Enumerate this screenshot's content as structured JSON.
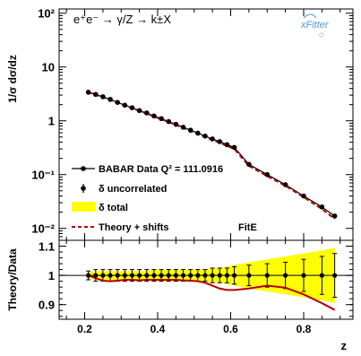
{
  "chart_data": [
    {
      "type": "line",
      "title": "e⁺e⁻ → γ/Z → k±X",
      "ylabel": "1/σ dσ/dz",
      "xlabel": "",
      "yscale": "log",
      "xlim": [
        0.13,
        0.935
      ],
      "ylim": [
        0.006,
        120
      ],
      "yticks": [
        "10²",
        "10",
        "1",
        "10⁻¹",
        "10⁻²"
      ],
      "legend_position": "bottom-left",
      "legend": [
        {
          "label": "BABAR Data Q² = 111.0916",
          "marker": "line-dot"
        },
        {
          "label": "δ uncorrelated",
          "marker": "errorbar"
        },
        {
          "label": "δ total",
          "marker": "yellow-box"
        },
        {
          "label": "Theory + shifts",
          "marker": "dashed-red"
        }
      ],
      "annotation": "FitE",
      "logo": "xFitter",
      "series": [
        {
          "name": "BABAR Data Q² = 111.0916",
          "x": [
            0.21,
            0.23,
            0.25,
            0.27,
            0.29,
            0.31,
            0.33,
            0.35,
            0.37,
            0.39,
            0.41,
            0.43,
            0.45,
            0.47,
            0.49,
            0.51,
            0.53,
            0.55,
            0.57,
            0.59,
            0.61,
            0.65,
            0.7,
            0.75,
            0.8,
            0.85,
            0.885
          ],
          "y": [
            3.4,
            3.1,
            2.8,
            2.5,
            2.2,
            1.95,
            1.75,
            1.55,
            1.4,
            1.23,
            1.1,
            0.97,
            0.86,
            0.76,
            0.67,
            0.59,
            0.52,
            0.46,
            0.41,
            0.36,
            0.32,
            0.155,
            0.1,
            0.065,
            0.04,
            0.025,
            0.017
          ]
        },
        {
          "name": "Theory + shifts",
          "x": [
            0.21,
            0.23,
            0.25,
            0.27,
            0.29,
            0.31,
            0.33,
            0.35,
            0.37,
            0.39,
            0.41,
            0.43,
            0.45,
            0.47,
            0.49,
            0.51,
            0.53,
            0.55,
            0.57,
            0.59,
            0.61,
            0.65,
            0.7,
            0.75,
            0.8,
            0.85,
            0.885
          ],
          "y": [
            3.4,
            3.05,
            2.75,
            2.45,
            2.16,
            1.92,
            1.72,
            1.52,
            1.37,
            1.2,
            1.07,
            0.95,
            0.84,
            0.74,
            0.65,
            0.57,
            0.5,
            0.44,
            0.39,
            0.34,
            0.3,
            0.145,
            0.094,
            0.062,
            0.038,
            0.023,
            0.015
          ]
        }
      ]
    },
    {
      "type": "line",
      "xlabel": "z",
      "ylabel": "Theory/Data",
      "xlim": [
        0.13,
        0.935
      ],
      "ylim": [
        0.85,
        1.12
      ],
      "xticks": [
        "0.2",
        "0.4",
        "0.6",
        "0.8"
      ],
      "yticks": [
        "1.1",
        "1",
        "0.9"
      ],
      "series": [
        {
          "name": "",
          "x": [
            0.21,
            0.23,
            0.25,
            0.27,
            0.29,
            0.31,
            0.33,
            0.35,
            0.37,
            0.39,
            0.41,
            0.43,
            0.45,
            0.47,
            0.49,
            0.51,
            0.53,
            0.55,
            0.57,
            0.59,
            0.61,
            0.65,
            0.7,
            0.75,
            0.8,
            0.85,
            0.885
          ],
          "data_ratio": [
            1,
            1,
            1,
            1,
            1,
            1,
            1,
            1,
            1,
            1,
            1,
            1,
            1,
            1,
            1,
            1,
            1,
            1,
            1,
            1,
            1,
            1,
            1,
            1,
            1,
            1,
            1
          ],
          "uncorrelated_error": [
            0.015,
            0.02,
            0.02,
            0.02,
            0.02,
            0.02,
            0.02,
            0.02,
            0.02,
            0.02,
            0.02,
            0.02,
            0.02,
            0.02,
            0.02,
            0.02,
            0.02,
            0.025,
            0.025,
            0.025,
            0.03,
            0.035,
            0.04,
            0.045,
            0.055,
            0.065,
            0.075
          ],
          "total_error": [
            0.012,
            0.015,
            0.015,
            0.015,
            0.015,
            0.015,
            0.015,
            0.015,
            0.015,
            0.02,
            0.02,
            0.02,
            0.02,
            0.02,
            0.02,
            0.02,
            0.02,
            0.025,
            0.025,
            0.03,
            0.035,
            0.045,
            0.055,
            0.065,
            0.075,
            0.085,
            0.095
          ]
        },
        {
          "name": "Theory + shifts",
          "x": [
            0.21,
            0.23,
            0.25,
            0.27,
            0.29,
            0.31,
            0.33,
            0.35,
            0.37,
            0.39,
            0.41,
            0.43,
            0.45,
            0.47,
            0.49,
            0.51,
            0.53,
            0.55,
            0.57,
            0.59,
            0.61,
            0.65,
            0.7,
            0.75,
            0.8,
            0.85,
            0.885
          ],
          "y": [
            1.0,
            0.99,
            0.982,
            0.98,
            0.982,
            0.985,
            0.985,
            0.983,
            0.985,
            0.985,
            0.985,
            0.985,
            0.985,
            0.983,
            0.982,
            0.98,
            0.975,
            0.965,
            0.955,
            0.95,
            0.95,
            0.955,
            0.965,
            0.958,
            0.935,
            0.905,
            0.882
          ]
        }
      ]
    }
  ],
  "colors": {
    "data": "#000000",
    "theory": "#b40000",
    "total_band": "#ffff00",
    "logo": "#4a9ad8"
  }
}
